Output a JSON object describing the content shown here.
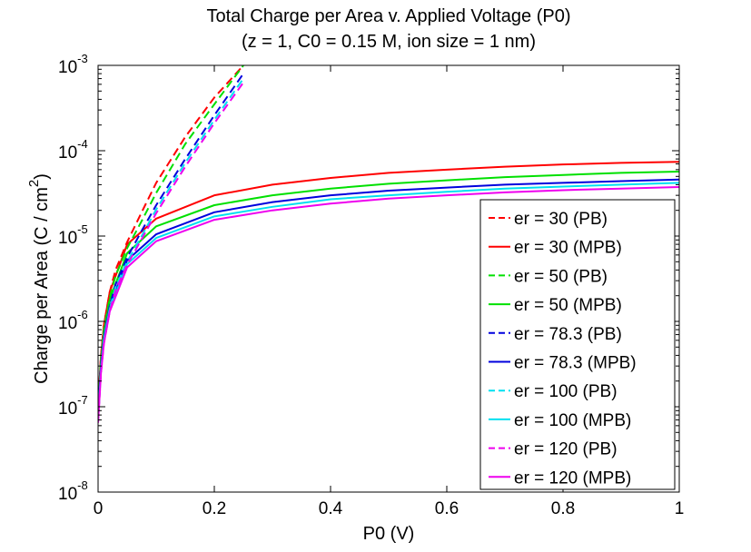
{
  "chart_data": {
    "type": "line",
    "title": "Total Charge per Area v. Applied Voltage (P0)",
    "subtitle": "(z = 1, C0 = 0.15 M, ion size = 1 nm)",
    "xlabel": "P0 (V)",
    "ylabel": "Charge per Area (C / cm",
    "ylabel_sup": "2",
    "ylabel_close": ")",
    "xlim": [
      0,
      1
    ],
    "ylim": [
      1e-08,
      0.001
    ],
    "yscale": "log",
    "grid": false,
    "legend_position": "bottom-right",
    "x_ticks": [
      "0",
      "0.2",
      "0.4",
      "0.6",
      "0.8",
      "1"
    ],
    "y_ticks": [
      {
        "base": "10",
        "exp": "-8"
      },
      {
        "base": "10",
        "exp": "-7"
      },
      {
        "base": "10",
        "exp": "-6"
      },
      {
        "base": "10",
        "exp": "-5"
      },
      {
        "base": "10",
        "exp": "-4"
      },
      {
        "base": "10",
        "exp": "-3"
      }
    ],
    "series": [
      {
        "name": "er = 30 (PB)",
        "color": "#ff0000",
        "dash": true,
        "x": [
          0.0,
          0.005,
          0.01,
          0.02,
          0.03,
          0.05,
          0.075,
          0.1,
          0.15,
          0.2,
          0.25
        ],
        "y": [
          1e-07,
          4e-07,
          9e-07,
          2.2e-06,
          4e-06,
          8.5e-06,
          1.9e-05,
          4.2e-05,
          0.000145,
          0.00042,
          0.001
        ]
      },
      {
        "name": "er = 30 (MPB)",
        "color": "#ff0000",
        "dash": false,
        "x": [
          0.0,
          0.005,
          0.01,
          0.02,
          0.05,
          0.1,
          0.2,
          0.3,
          0.4,
          0.5,
          0.6,
          0.7,
          0.8,
          0.9,
          1.0
        ],
        "y": [
          1e-07,
          4e-07,
          9e-07,
          2.2e-06,
          8e-06,
          1.6e-05,
          3e-05,
          4e-05,
          4.8e-05,
          5.5e-05,
          6e-05,
          6.5e-05,
          6.9e-05,
          7.2e-05,
          7.4e-05
        ]
      },
      {
        "name": "er = 50 (PB)",
        "color": "#00e000",
        "dash": true,
        "x": [
          0.0,
          0.005,
          0.01,
          0.02,
          0.03,
          0.05,
          0.075,
          0.1,
          0.15,
          0.2,
          0.25
        ],
        "y": [
          9e-08,
          3.6e-07,
          8e-07,
          1.9e-06,
          3.4e-06,
          7.2e-06,
          1.5e-05,
          3.2e-05,
          0.00012,
          0.00035,
          0.001
        ]
      },
      {
        "name": "er = 50 (MPB)",
        "color": "#00e000",
        "dash": false,
        "x": [
          0.0,
          0.005,
          0.01,
          0.02,
          0.05,
          0.1,
          0.2,
          0.3,
          0.4,
          0.5,
          0.6,
          0.7,
          0.8,
          0.9,
          1.0
        ],
        "y": [
          9e-08,
          3.5e-07,
          7.5e-07,
          1.8e-06,
          6.3e-06,
          1.3e-05,
          2.3e-05,
          3e-05,
          3.6e-05,
          4.1e-05,
          4.5e-05,
          4.9e-05,
          5.2e-05,
          5.5e-05,
          5.7e-05
        ]
      },
      {
        "name": "er = 78.3 (PB)",
        "color": "#0000dd",
        "dash": true,
        "x": [
          0.0,
          0.005,
          0.01,
          0.02,
          0.03,
          0.05,
          0.075,
          0.1,
          0.15,
          0.2,
          0.25
        ],
        "y": [
          8e-08,
          3e-07,
          6.5e-07,
          1.5e-06,
          2.7e-06,
          5.6e-06,
          1.15e-05,
          2.3e-05,
          8e-05,
          0.00026,
          0.0008
        ]
      },
      {
        "name": "er = 78.3 (MPB)",
        "color": "#0000dd",
        "dash": false,
        "x": [
          0.0,
          0.005,
          0.01,
          0.02,
          0.05,
          0.1,
          0.2,
          0.3,
          0.4,
          0.5,
          0.6,
          0.7,
          0.8,
          0.9,
          1.0
        ],
        "y": [
          8e-08,
          3e-07,
          6.5e-07,
          1.5e-06,
          5.2e-06,
          1.05e-05,
          1.9e-05,
          2.5e-05,
          3e-05,
          3.4e-05,
          3.7e-05,
          4e-05,
          4.2e-05,
          4.4e-05,
          4.6e-05
        ]
      },
      {
        "name": "er = 100 (PB)",
        "color": "#00e0f0",
        "dash": true,
        "x": [
          0.0,
          0.005,
          0.01,
          0.02,
          0.03,
          0.05,
          0.075,
          0.1,
          0.15,
          0.2,
          0.25
        ],
        "y": [
          7e-08,
          2.7e-07,
          6e-07,
          1.4e-06,
          2.5e-06,
          5e-06,
          1e-05,
          2.05e-05,
          7.2e-05,
          0.00023,
          0.0007
        ]
      },
      {
        "name": "er = 100 (MPB)",
        "color": "#00e0f0",
        "dash": false,
        "x": [
          0.0,
          0.005,
          0.01,
          0.02,
          0.05,
          0.1,
          0.2,
          0.3,
          0.4,
          0.5,
          0.6,
          0.7,
          0.8,
          0.9,
          1.0
        ],
        "y": [
          7e-08,
          2.7e-07,
          6e-07,
          1.4e-06,
          4.7e-06,
          9.5e-06,
          1.7e-05,
          2.2e-05,
          2.7e-05,
          3e-05,
          3.3e-05,
          3.6e-05,
          3.8e-05,
          4e-05,
          4.2e-05
        ]
      },
      {
        "name": "er = 120 (PB)",
        "color": "#ee00ee",
        "dash": true,
        "x": [
          0.0,
          0.005,
          0.01,
          0.02,
          0.03,
          0.05,
          0.075,
          0.1,
          0.15,
          0.2,
          0.25
        ],
        "y": [
          6.5e-08,
          2.5e-07,
          5.5e-07,
          1.3e-06,
          2.3e-06,
          4.6e-06,
          9.2e-06,
          1.85e-05,
          6.5e-05,
          0.00021,
          0.00063
        ]
      },
      {
        "name": "er = 120 (MPB)",
        "color": "#ee00ee",
        "dash": false,
        "x": [
          0.0,
          0.005,
          0.01,
          0.02,
          0.05,
          0.1,
          0.2,
          0.3,
          0.4,
          0.5,
          0.6,
          0.7,
          0.8,
          0.9,
          1.0
        ],
        "y": [
          6.5e-08,
          2.5e-07,
          5.5e-07,
          1.3e-06,
          4.3e-06,
          8.7e-06,
          1.55e-05,
          2e-05,
          2.4e-05,
          2.75e-05,
          3e-05,
          3.25e-05,
          3.45e-05,
          3.6e-05,
          3.75e-05
        ]
      }
    ]
  }
}
